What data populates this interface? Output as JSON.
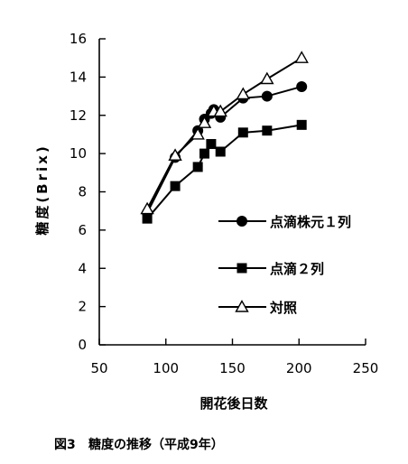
{
  "chart_data": {
    "type": "line",
    "title": "",
    "xlabel": "開花後日数",
    "ylabel": "糖度(Brix)",
    "xlim": [
      50,
      250
    ],
    "ylim": [
      0,
      16
    ],
    "xticks": [
      50,
      100,
      150,
      200,
      250
    ],
    "yticks": [
      0,
      2,
      4,
      6,
      8,
      10,
      12,
      14,
      16
    ],
    "grid": false,
    "legend_position": "right-middle",
    "series": [
      {
        "name": "点滴株元１列",
        "marker": "circle-filled",
        "x": [
          86,
          107,
          124,
          129,
          134,
          136,
          141,
          158,
          176,
          202
        ],
        "y": [
          6.9,
          9.8,
          11.2,
          11.8,
          12.1,
          12.3,
          11.9,
          12.9,
          13.0,
          13.5
        ]
      },
      {
        "name": "点滴２列",
        "marker": "square-filled",
        "x": [
          86,
          107,
          124,
          129,
          134,
          141,
          158,
          176,
          202
        ],
        "y": [
          6.6,
          8.3,
          9.3,
          10.0,
          10.5,
          10.1,
          11.1,
          11.2,
          11.5
        ]
      },
      {
        "name": "対照",
        "marker": "triangle-open",
        "x": [
          86,
          107,
          124,
          129,
          136,
          141,
          158,
          176,
          202
        ],
        "y": [
          7.1,
          9.9,
          11.0,
          11.6,
          12.2,
          12.2,
          13.1,
          13.9,
          15.0
        ]
      }
    ]
  },
  "caption": {
    "figure_label": "図3",
    "text": "糖度の推移（平成9年）"
  }
}
